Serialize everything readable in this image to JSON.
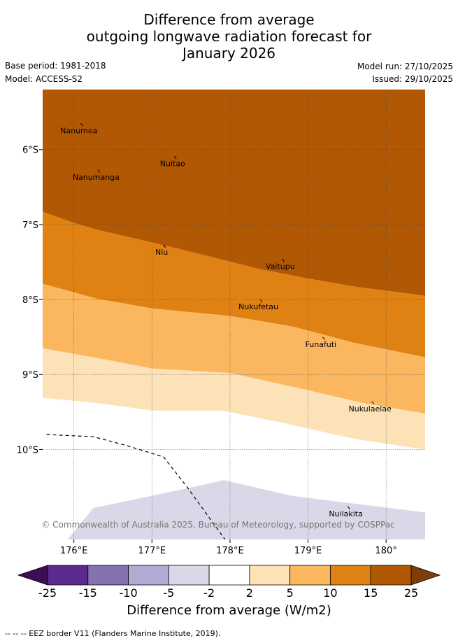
{
  "title": {
    "line1": "Difference from average",
    "line2": "outgoing longwave radiation forecast for",
    "line3": "January 2026"
  },
  "meta": {
    "base_period": "Base period: 1981-2018",
    "model": "Model: ACCESS-S2",
    "model_run": "Model run: 27/10/2025",
    "issued": "Issued: 29/10/2025"
  },
  "map": {
    "lon_range": [
      175.6,
      180.5
    ],
    "lat_range": [
      -5.2,
      -11.2
    ],
    "lon_ticks": [
      {
        "value": 176,
        "label": "176°E"
      },
      {
        "value": 177,
        "label": "177°E"
      },
      {
        "value": 178,
        "label": "178°E"
      },
      {
        "value": 179,
        "label": "179°E"
      },
      {
        "value": 180,
        "label": "180°"
      }
    ],
    "lat_ticks": [
      {
        "value": -6,
        "label": "6°S"
      },
      {
        "value": -7,
        "label": "7°S"
      },
      {
        "value": -8,
        "label": "8°S"
      },
      {
        "value": -9,
        "label": "9°S"
      },
      {
        "value": -10,
        "label": "10°S"
      }
    ],
    "islands": [
      {
        "name": "Nanumea",
        "lon": 176.1,
        "lat": -5.67
      },
      {
        "name": "Nuitao",
        "lon": 177.3,
        "lat": -6.11
      },
      {
        "name": "Nanumanga",
        "lon": 176.32,
        "lat": -6.29
      },
      {
        "name": "Niu",
        "lon": 177.16,
        "lat": -7.29
      },
      {
        "name": "Vaitupu",
        "lon": 178.68,
        "lat": -7.48
      },
      {
        "name": "Nukufetau",
        "lon": 178.4,
        "lat": -8.02
      },
      {
        "name": "Funafuti",
        "lon": 179.2,
        "lat": -8.52
      },
      {
        "name": "Nukulaelae",
        "lon": 179.83,
        "lat": -9.38
      },
      {
        "name": "Nuilakita",
        "lon": 179.52,
        "lat": -10.78
      }
    ],
    "eez_border": [
      [
        175.65,
        -9.8
      ],
      [
        176.25,
        -9.83
      ],
      [
        176.65,
        -9.94
      ],
      [
        177.15,
        -10.1
      ],
      [
        177.45,
        -10.5
      ],
      [
        177.95,
        -11.22
      ]
    ],
    "contours": {
      "c15_25": [
        [
          175.6,
          -6.83
        ],
        [
          176.0,
          -6.98
        ],
        [
          176.3,
          -7.07
        ],
        [
          177.0,
          -7.24
        ],
        [
          177.6,
          -7.39
        ],
        [
          178.4,
          -7.6
        ],
        [
          179.0,
          -7.72
        ],
        [
          179.6,
          -7.83
        ],
        [
          180.5,
          -7.95
        ]
      ],
      "c10_15": [
        [
          175.6,
          -7.79
        ],
        [
          176.3,
          -7.99
        ],
        [
          177.0,
          -8.12
        ],
        [
          178.0,
          -8.22
        ],
        [
          178.8,
          -8.36
        ],
        [
          179.6,
          -8.58
        ],
        [
          180.5,
          -8.77
        ]
      ],
      "c5_10": [
        [
          175.6,
          -8.65
        ],
        [
          176.5,
          -8.82
        ],
        [
          177.0,
          -8.92
        ],
        [
          178.0,
          -8.98
        ],
        [
          179.0,
          -9.21
        ],
        [
          179.7,
          -9.38
        ],
        [
          180.5,
          -9.52
        ]
      ],
      "c2_5": [
        [
          175.6,
          -9.31
        ],
        [
          176.3,
          -9.38
        ],
        [
          177.0,
          -9.48
        ],
        [
          177.9,
          -9.48
        ],
        [
          178.7,
          -9.65
        ],
        [
          179.6,
          -9.86
        ],
        [
          180.5,
          -10.0
        ]
      ],
      "neg": [
        [
          175.92,
          -11.2
        ],
        [
          176.25,
          -10.78
        ],
        [
          177.4,
          -10.53
        ],
        [
          177.92,
          -10.41
        ],
        [
          178.8,
          -10.62
        ],
        [
          180.5,
          -10.84
        ],
        [
          180.5,
          -11.2
        ]
      ]
    },
    "colors": {
      "c25": "#b15805",
      "c15": "#e08213",
      "c10": "#fbb660",
      "c5": "#fde1b7",
      "n0": "#ffffff",
      "n2": "#d8d8e8"
    }
  },
  "copyright": "© Commonwealth of Australia 2025, Bureau of Meteorology, supported by COSPPac",
  "colorbar": {
    "ticks": [
      "-25",
      "-15",
      "-10",
      "-5",
      "-2",
      "2",
      "5",
      "10",
      "15",
      "25"
    ],
    "colors": [
      "#5b2a8e",
      "#8472b0",
      "#b2abd3",
      "#d8d8e8",
      "#ffffff",
      "#fde1b7",
      "#fbb660",
      "#e08213",
      "#b15805"
    ],
    "low_extend": "#3c0e54",
    "high_extend": "#7e3d0a",
    "label": "Difference from average (W/m2)"
  },
  "footnote": "--  --  -- EEZ border V11 (Flanders Marine Institute, 2019)."
}
